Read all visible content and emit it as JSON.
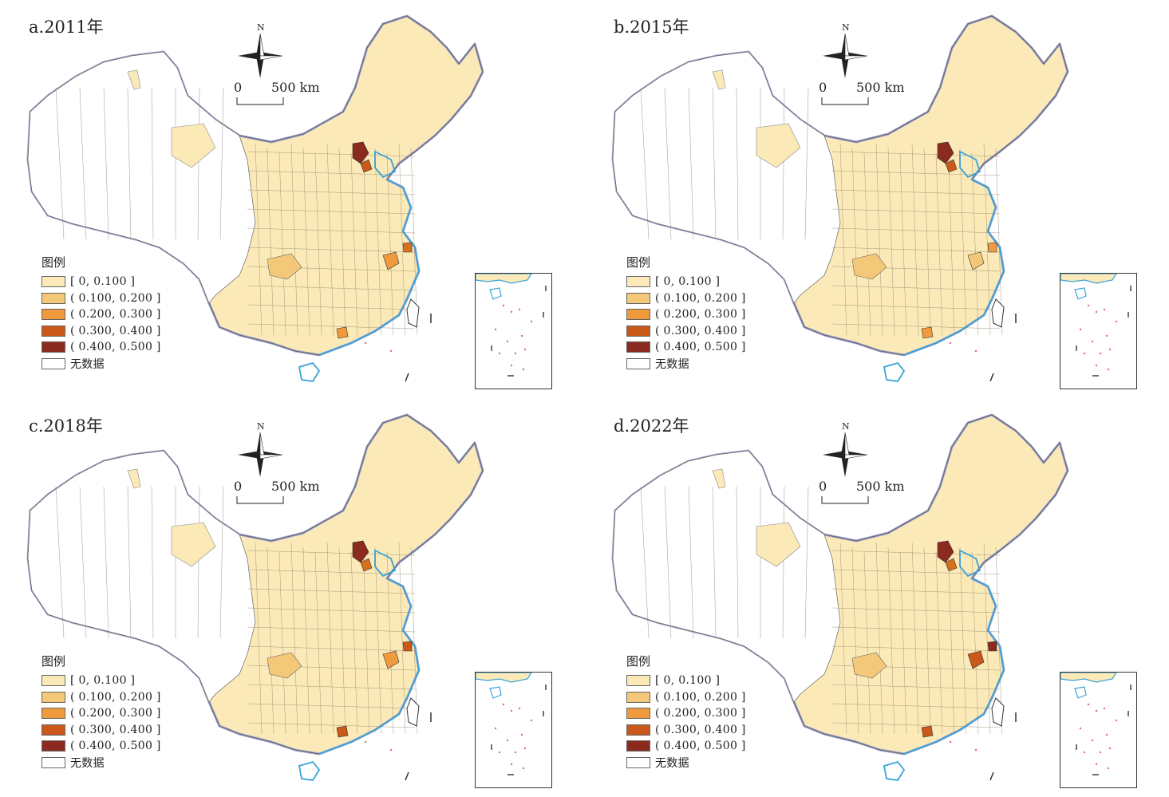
{
  "map_panels": [
    {
      "title": "a.2011年",
      "highlight": {
        "beijing": "#8B2A1E",
        "tianjin": "#C9581A",
        "shanghai": "#D5701F",
        "hangzhou": "#F09A3E",
        "chongqing": "#F3C878",
        "shenzhen": "#F09A3E"
      }
    },
    {
      "title": "b.2015年",
      "highlight": {
        "beijing": "#8B2A1E",
        "tianjin": "#C9581A",
        "shanghai": "#F09A3E",
        "hangzhou": "#F3C878",
        "chongqing": "#F3C878",
        "shenzhen": "#F09A3E"
      }
    },
    {
      "title": "c.2018年",
      "highlight": {
        "beijing": "#8B2A1E",
        "tianjin": "#D5701F",
        "shanghai": "#C9581A",
        "hangzhou": "#F09A3E",
        "chongqing": "#F3C878",
        "shenzhen": "#C9581A"
      }
    },
    {
      "title": "d.2022年",
      "highlight": {
        "beijing": "#8B2A1E",
        "tianjin": "#D5701F",
        "shanghai": "#8B2A1E",
        "hangzhou": "#C9581A",
        "chongqing": "#F3C878",
        "shenzhen": "#C9581A"
      }
    }
  ],
  "compass": {
    "north_label": "N"
  },
  "scale_bar": {
    "zero": "0",
    "distance": "500 km"
  },
  "legend": {
    "title": "图例",
    "items": [
      {
        "label": "[ 0, 0.100 ]",
        "color": "#FBEAB8"
      },
      {
        "label": "( 0.100, 0.200 ]",
        "color": "#F3C878"
      },
      {
        "label": "( 0.200, 0.300 ]",
        "color": "#F09A3E"
      },
      {
        "label": "( 0.300, 0.400 ]",
        "color": "#C9581A"
      },
      {
        "label": "( 0.400, 0.500 ]",
        "color": "#8B2A1E"
      },
      {
        "label": "无数据",
        "color": "#FFFFFF"
      }
    ]
  },
  "colors": {
    "coast": "#37A3D9",
    "border_outline": "#9DA0C8",
    "island_dots": "#E060A0"
  }
}
